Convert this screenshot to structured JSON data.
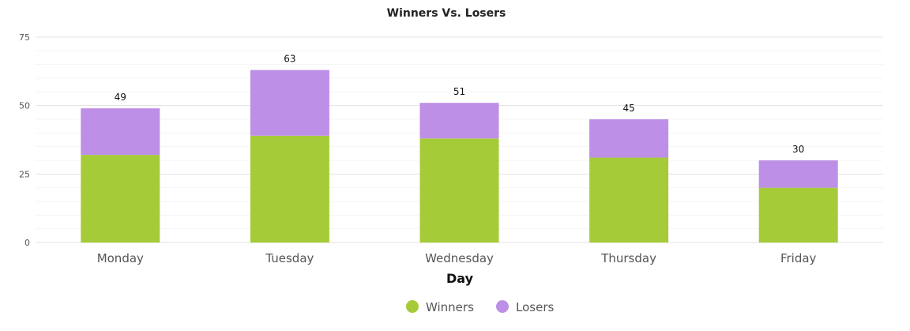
{
  "chart_data": {
    "type": "bar",
    "stacked": true,
    "title": "Winners Vs. Losers",
    "xlabel": "Day",
    "ylabel": "",
    "categories": [
      "Monday",
      "Tuesday",
      "Wednesday",
      "Thursday",
      "Friday"
    ],
    "series": [
      {
        "name": "Winners",
        "values": [
          32,
          39,
          38,
          31,
          20
        ],
        "color": "#a5cb39"
      },
      {
        "name": "Losers",
        "values": [
          17,
          24,
          13,
          14,
          10
        ],
        "color": "#bd8fe6"
      }
    ],
    "totals": [
      "49",
      "63",
      "51",
      "45",
      "30"
    ],
    "ylim": [
      0,
      75
    ],
    "yticks": [
      "0",
      "25",
      "50",
      "75"
    ],
    "grid": true,
    "legend_position": "bottom"
  }
}
